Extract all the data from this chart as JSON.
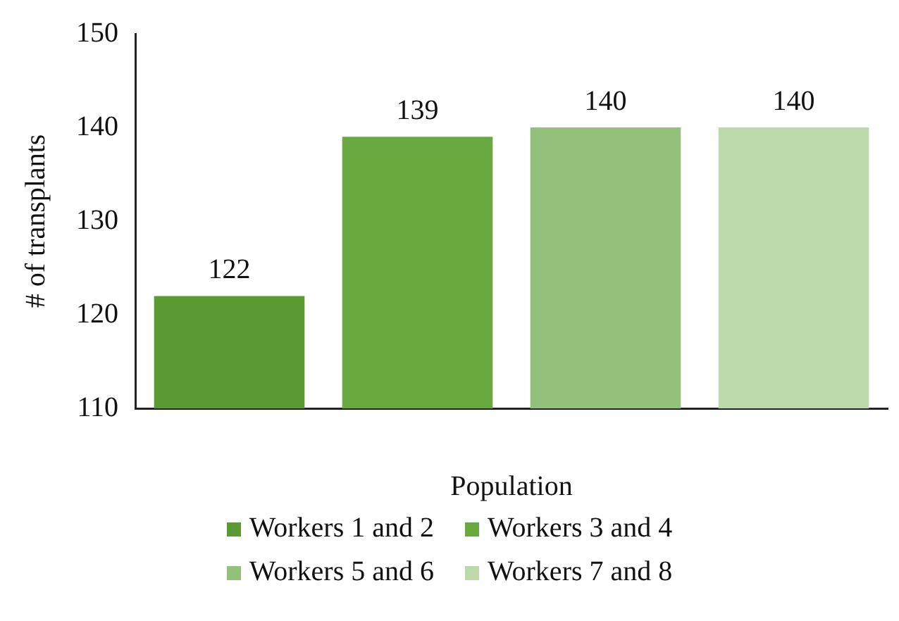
{
  "chart_data": {
    "type": "bar",
    "xlabel": "Population",
    "ylabel": "# of transplants",
    "categories": [
      null
    ],
    "series": [
      {
        "name": "Workers 1 and 2",
        "color": "#5a9a32",
        "values": [
          122
        ]
      },
      {
        "name": "Workers 3 and 4",
        "color": "#68aa40",
        "values": [
          139
        ]
      },
      {
        "name": "Workers 5 and 6",
        "color": "#93c07a",
        "values": [
          140
        ]
      },
      {
        "name": "Workers 7 and 8",
        "color": "#bcd9ac",
        "values": [
          140
        ]
      }
    ],
    "ylim": [
      110,
      150
    ],
    "yticks": [
      110,
      120,
      130,
      140,
      150
    ],
    "grid": false,
    "data_labels": true,
    "legend": "bottom"
  }
}
